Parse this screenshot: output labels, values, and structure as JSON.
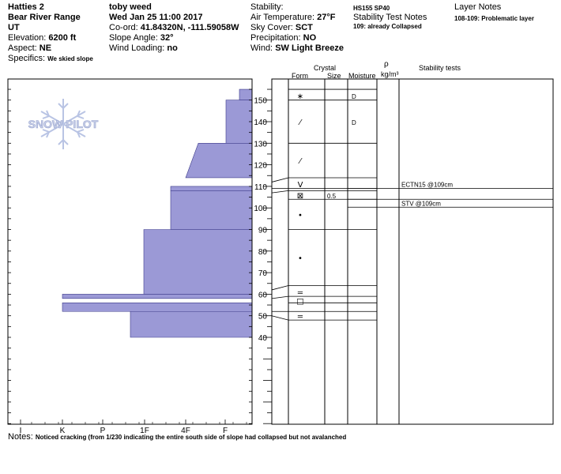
{
  "header": {
    "col1": [
      {
        "label": "Hatties 2",
        "value": ""
      },
      {
        "label": "Bear River Range",
        "value": ""
      },
      {
        "label": "UT",
        "value": ""
      },
      {
        "label": "Elevation: ",
        "value": "6200 ft"
      },
      {
        "label": "Aspect: ",
        "value": "NE"
      },
      {
        "label": "Specifics: ",
        "value": "We skied slope"
      }
    ],
    "col2": [
      {
        "label": "toby weed",
        "value": ""
      },
      {
        "label": "Wed Jan 25 11:00 2017",
        "value": ""
      },
      {
        "label": "Co-ord: ",
        "value": "41.84320N, -111.59058W"
      },
      {
        "label": "Slope Angle: ",
        "value": "32°"
      },
      {
        "label": "Wind Loading: ",
        "value": "no"
      }
    ],
    "col3": [
      {
        "label": "Stability:",
        "value": ""
      },
      {
        "label": "Air Temperature: ",
        "value": "27°F"
      },
      {
        "label": "Sky Cover: ",
        "value": "SCT"
      },
      {
        "label": "Precipitation: ",
        "value": "NO"
      },
      {
        "label": "Wind: ",
        "value": "SW Light Breeze"
      }
    ],
    "hs_sp": "HS155  SP40",
    "stability_notes_title": "Stability Test Notes",
    "stability_note_1": "109: already Collapsed",
    "layer_notes_title": "Layer Notes",
    "layer_note_1": "108-109: Problematic layer"
  },
  "columns": {
    "crystal": "Crystal",
    "form": "Form",
    "size": "Size",
    "moisture": "Moisture",
    "rho": "ρ",
    "density_unit": "kg/m³",
    "stability_tests": "Stability tests"
  },
  "watermark": "SNOW PILOT",
  "notes_label": "Notes: ",
  "notes_text": "Noticed cracking (from 1/230 indicating the entire south side of slope had collapsed but not avalanched",
  "colors": {
    "hardness_fill": "#9b99d6",
    "hardness_stroke": "#3e3c8a",
    "watermark": "#b9c4e4"
  },
  "chart_data": {
    "type": "bar",
    "title": "",
    "hardness_axis_labels": [
      "I",
      "K",
      "P",
      "1F",
      "4F",
      "F"
    ],
    "height_ticks": [
      40,
      50,
      60,
      70,
      80,
      90,
      100,
      110,
      120,
      130,
      140,
      150
    ],
    "ylim": [
      0,
      155
    ],
    "layers": [
      {
        "top": 155,
        "bottom": 150,
        "hardness_top": "F-",
        "hardness_bottom": "F-"
      },
      {
        "top": 150,
        "bottom": 130,
        "hardness_top": "F",
        "hardness_bottom": "F"
      },
      {
        "top": 130,
        "bottom": 114,
        "hardness_top": "4F+",
        "hardness_bottom": "4F-"
      },
      {
        "top": 110,
        "bottom": 108,
        "hardness_top": "4F",
        "hardness_bottom": "4F"
      },
      {
        "top": 108,
        "bottom": 90,
        "hardness_top": "4F",
        "hardness_bottom": "4F"
      },
      {
        "top": 90,
        "bottom": 60,
        "hardness_top": "1F",
        "hardness_bottom": "1F"
      },
      {
        "top": 60,
        "bottom": 58,
        "hardness_top": "K",
        "hardness_bottom": "K"
      },
      {
        "top": 56,
        "bottom": 52,
        "hardness_top": "K",
        "hardness_bottom": "K"
      },
      {
        "top": 52,
        "bottom": 40,
        "hardness_top": "1F-",
        "hardness_bottom": "1F-"
      }
    ],
    "layer_lines": [
      155,
      150,
      130,
      114,
      109,
      108,
      104,
      90,
      64,
      59,
      56,
      52,
      48
    ],
    "grain_forms": [
      {
        "height": 152,
        "symbol": "∗",
        "size": "",
        "moisture": "D"
      },
      {
        "height": 140,
        "symbol": "⁄",
        "size": "",
        "moisture": "D"
      },
      {
        "height": 122,
        "symbol": "⁄",
        "size": "",
        "moisture": ""
      },
      {
        "height": 111,
        "symbol": "V",
        "size": "",
        "moisture": ""
      },
      {
        "height": 106,
        "symbol": "⊠",
        "size": "0.5",
        "moisture": ""
      },
      {
        "height": 97,
        "symbol": "•",
        "size": "",
        "moisture": ""
      },
      {
        "height": 77,
        "symbol": "•",
        "size": "",
        "moisture": ""
      },
      {
        "height": 61,
        "symbol": "=",
        "size": "",
        "moisture": ""
      },
      {
        "height": 57,
        "symbol": "□",
        "size": "",
        "moisture": ""
      },
      {
        "height": 50,
        "symbol": "=",
        "size": "",
        "moisture": ""
      }
    ],
    "stability_tests": [
      {
        "height": 109,
        "label": "ECTN15 @109cm"
      },
      {
        "height": 104,
        "label": "STV @109cm"
      }
    ]
  }
}
